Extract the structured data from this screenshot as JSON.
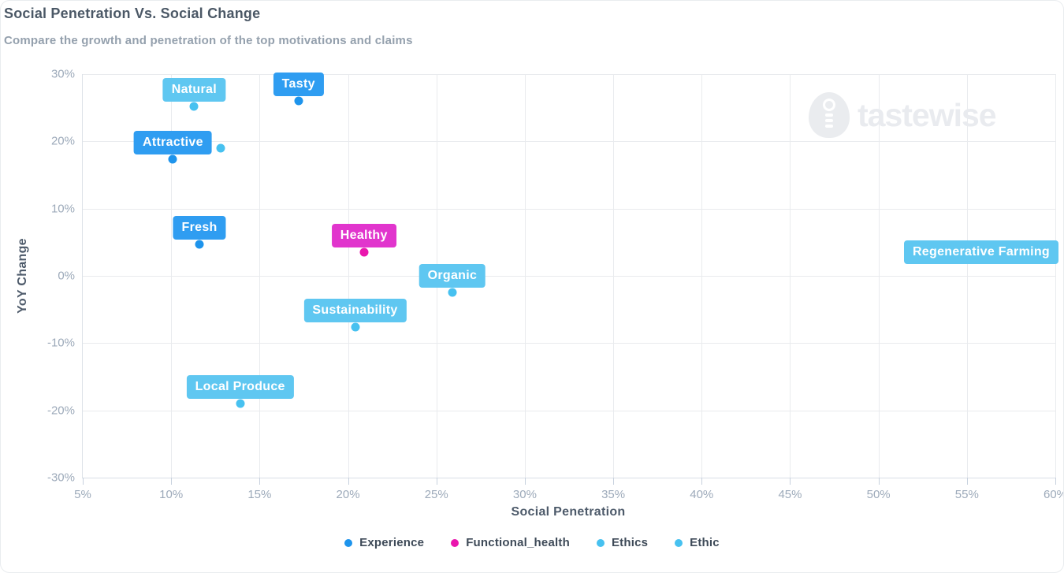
{
  "header": {
    "title": "Social Penetration Vs. Social Change",
    "subtitle": "Compare the growth and penetration of the top motivations and claims"
  },
  "watermark": {
    "brand": "tastewise",
    "icon": "tastewise-egg-fork-logo"
  },
  "chart_data": {
    "type": "scatter",
    "title": "Social Penetration Vs. Social Change",
    "xlabel": "Social Penetration",
    "ylabel": "YoY Change",
    "xlim": [
      5,
      60
    ],
    "ylim": [
      -30,
      30
    ],
    "x_ticks": [
      5,
      10,
      15,
      20,
      25,
      30,
      35,
      40,
      45,
      50,
      55,
      60
    ],
    "y_ticks": [
      30,
      20,
      10,
      0,
      -10,
      -20,
      -30
    ],
    "tick_suffix": "%",
    "grid": true,
    "legend_position": "bottom-center",
    "colors": {
      "experience": "#1e94ec",
      "experience_label_bg": "#2f9df1",
      "functional_health": "#ea16ae",
      "functional_health_label_bg": "#e135cd",
      "ethics": "#47c1f0",
      "ethics_label_bg": "#5fc7f1"
    },
    "series": [
      {
        "name": "Experience",
        "color": "#1e94ec",
        "label_bg": "#2f9df1",
        "points": [
          {
            "label": "Tasty",
            "x": 17.2,
            "y": 26.0
          },
          {
            "label": "Attractive",
            "x": 10.1,
            "y": 17.3
          },
          {
            "label": "Fresh",
            "x": 11.6,
            "y": 4.7
          }
        ]
      },
      {
        "name": "Functional_health",
        "color": "#ea16ae",
        "label_bg": "#e135cd",
        "points": [
          {
            "label": "Healthy",
            "x": 20.9,
            "y": 3.5
          }
        ]
      },
      {
        "name": "Ethics",
        "color": "#47c1f0",
        "label_bg": "#5fc7f1",
        "points": [
          {
            "label": "Natural",
            "x": 11.3,
            "y": 25.2
          },
          {
            "label": "Organic",
            "x": 25.9,
            "y": -2.5
          },
          {
            "label": "Sustainability",
            "x": 20.4,
            "y": -7.6
          },
          {
            "label": "Local Produce",
            "x": 13.9,
            "y": -19.0
          },
          {
            "label": "Regenerative Farming",
            "x": 60.0,
            "y": 3.5,
            "align_right": true,
            "hide_dot": true
          }
        ]
      },
      {
        "name": "Ethic",
        "color": "#47c1f0",
        "label_bg": "#5fc7f1",
        "points": [
          {
            "label": "",
            "x": 12.8,
            "y": 19.0
          }
        ]
      }
    ]
  }
}
